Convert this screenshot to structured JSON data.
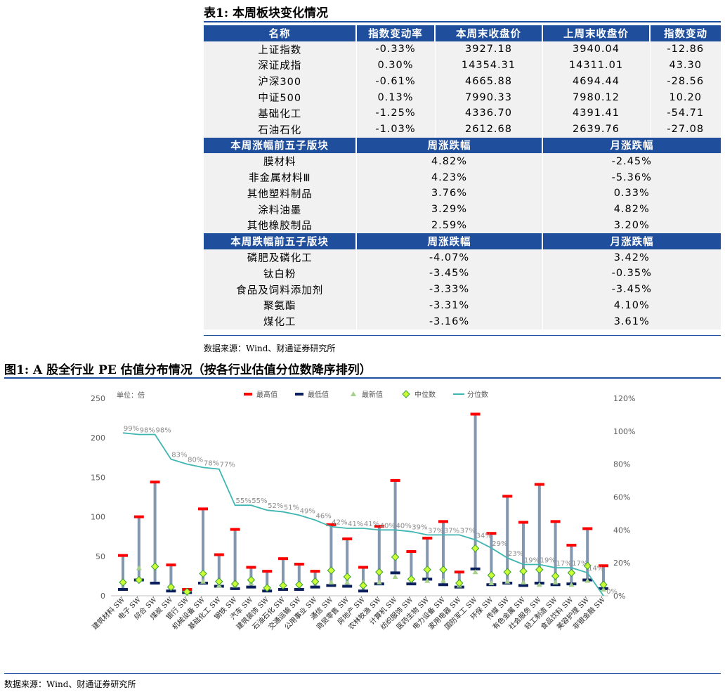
{
  "table": {
    "caption": "表1: 本周板块变化情况",
    "header1": [
      "名称",
      "指数变动率",
      "本周末收盘价",
      "上周末收盘价",
      "指数变动"
    ],
    "rows1": [
      [
        "上证指数",
        "-0.33%",
        "3927.18",
        "3940.04",
        "-12.86"
      ],
      [
        "深证成指",
        "0.30%",
        "14354.31",
        "14311.01",
        "43.30"
      ],
      [
        "沪深300",
        "-0.61%",
        "4665.88",
        "4694.44",
        "-28.56"
      ],
      [
        "中证500",
        "0.13%",
        "7990.33",
        "7980.12",
        "10.20"
      ],
      [
        "基础化工",
        "-1.25%",
        "4336.70",
        "4391.41",
        "-54.71"
      ],
      [
        "石油石化",
        "-1.03%",
        "2612.68",
        "2639.76",
        "-27.08"
      ]
    ],
    "header2": [
      "本周涨幅前五子版块",
      "周涨跌幅",
      "月涨跌幅"
    ],
    "rows2": [
      [
        "膜材料",
        "4.82%",
        "-2.45%"
      ],
      [
        "非金属材料Ⅲ",
        "4.23%",
        "-5.36%"
      ],
      [
        "其他塑料制品",
        "3.76%",
        "0.33%"
      ],
      [
        "涂料油墨",
        "3.29%",
        "4.82%"
      ],
      [
        "其他橡胶制品",
        "2.59%",
        "3.20%"
      ]
    ],
    "header3": [
      "本周跌幅前五子版块",
      "周涨跌幅",
      "月涨跌幅"
    ],
    "rows3": [
      [
        "磷肥及磷化工",
        "-4.07%",
        "3.42%"
      ],
      [
        "钛白粉",
        "-3.45%",
        "-0.35%"
      ],
      [
        "食品及饲料添加剂",
        "-3.33%",
        "-3.45%"
      ],
      [
        "聚氨酯",
        "-3.31%",
        "4.10%"
      ],
      [
        "煤化工",
        "-3.16%",
        "3.61%"
      ]
    ],
    "source": "数据来源：Wind、财通证券研究所"
  },
  "figure": {
    "caption": "图1: A 股全行业 PE 估值分布情况（按各行业估值分位数降序排列）",
    "source": "数据来源：Wind、财通证券研究所"
  },
  "colors": {
    "header_bg": "#1f4e9c",
    "max": "#ff0000",
    "min": "#0a1f5c",
    "latest": "#a8d08d",
    "median": "#ccff33",
    "percentile": "#3fb6b2",
    "range": "#8497b0"
  },
  "chart_data": {
    "type": "line",
    "unit_label": "单位：倍",
    "legend": [
      "最高值",
      "最低值",
      "最新值",
      "中位数",
      "分位数"
    ],
    "legend_position": "top",
    "ylim_left": [
      0,
      250
    ],
    "ylim_right": [
      0,
      1.2
    ],
    "yticks_left": [
      "0",
      "50",
      "100",
      "150",
      "200",
      "250"
    ],
    "yticks_right": [
      "0%",
      "20%",
      "40%",
      "60%",
      "80%",
      "100%",
      "120%"
    ],
    "categories": [
      "建筑材料 SW",
      "电子 SW",
      "综合 SW",
      "煤炭 SW",
      "银行 SW",
      "机械设备 SW",
      "基础化工 SW",
      "钢铁 SW",
      "汽车 SW",
      "建筑装饰 SW",
      "石油石化 SW",
      "交通运输 SW",
      "公用事业 SW",
      "通信 SW",
      "商贸零售 SW",
      "房地产 SW",
      "农林牧渔 SW",
      "计算机 SW",
      "纺织服饰 SW",
      "医药生物 SW",
      "电力设备 SW",
      "家用电器 SW",
      "国防军工 SW",
      "环保 SW",
      "传媒 SW",
      "有色金属 SW",
      "社会服务 SW",
      "轻工制造 SW",
      "食品饮料 SW",
      "美容护理 SW",
      "非银金融 SW"
    ],
    "max": [
      51,
      100,
      144,
      39,
      8,
      110,
      52,
      84,
      36,
      31,
      47,
      40,
      31,
      90,
      72,
      36,
      88,
      146,
      56,
      73,
      94,
      30,
      230,
      79,
      126,
      93,
      141,
      94,
      64,
      85,
      38
    ],
    "min": [
      8,
      20,
      16,
      6,
      4,
      16,
      12,
      9,
      11,
      6,
      8,
      8,
      11,
      13,
      12,
      6,
      15,
      29,
      15,
      21,
      14,
      11,
      34,
      14,
      16,
      13,
      16,
      14,
      15,
      20,
      9
    ],
    "latest": [
      17,
      35,
      39,
      12,
      6,
      18,
      13,
      13,
      16,
      12,
      16,
      16,
      17,
      17,
      17,
      17,
      17,
      24,
      23,
      19,
      19,
      13,
      30,
      16,
      18,
      17,
      14,
      17,
      14,
      19,
      8
    ],
    "median": [
      17,
      20,
      37,
      11,
      5,
      28,
      18,
      15,
      20,
      10,
      13,
      14,
      18,
      32,
      24,
      13,
      30,
      49,
      21,
      33,
      33,
      16,
      60,
      26,
      30,
      31,
      33,
      25,
      29,
      38,
      14
    ],
    "percentile": [
      0.99,
      0.98,
      0.98,
      0.83,
      0.8,
      0.78,
      0.77,
      0.55,
      0.55,
      0.52,
      0.51,
      0.49,
      0.46,
      0.42,
      0.41,
      0.41,
      0.4,
      0.4,
      0.39,
      0.37,
      0.37,
      0.37,
      0.34,
      0.29,
      0.23,
      0.19,
      0.19,
      0.17,
      0.17,
      0.14,
      0.0
    ],
    "percentile_labels": [
      "99%",
      "98%",
      "98%",
      "83%",
      "80%",
      "78%",
      "77%",
      "55%",
      "55%",
      "52%",
      "51%",
      "49%",
      "46%",
      "42%",
      "41%",
      "41%",
      "40%",
      "40%",
      "39%",
      "37%",
      "37%",
      "37%",
      "34%",
      "29%",
      "23%",
      "19%",
      "19%",
      "17%",
      "17%",
      "14%",
      "0%"
    ]
  }
}
